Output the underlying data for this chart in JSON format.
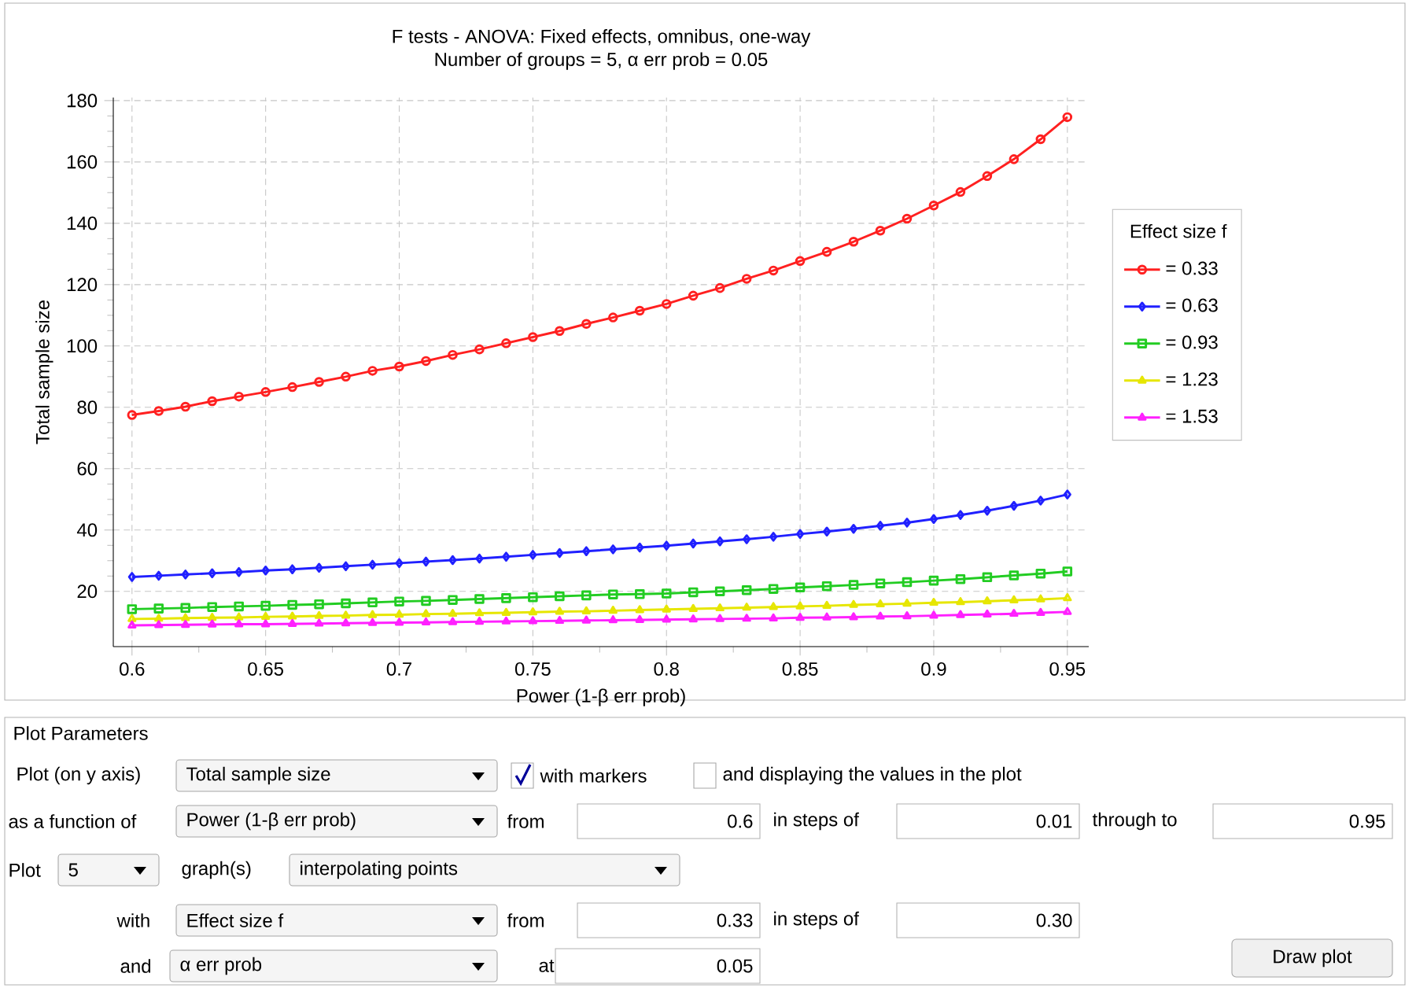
{
  "chart_data": {
    "type": "line",
    "title": "F tests - ANOVA: Fixed effects, omnibus, one-way",
    "subtitle": "Number of groups = 5, α err prob = 0.05",
    "xlabel": "Power (1-β err prob)",
    "ylabel": "Total sample size",
    "legend_title": "Effect size f",
    "x": [
      0.6,
      0.61,
      0.62,
      0.63,
      0.64,
      0.65,
      0.66,
      0.67,
      0.68,
      0.69,
      0.7,
      0.71,
      0.72,
      0.73,
      0.74,
      0.75,
      0.76,
      0.77,
      0.78,
      0.79,
      0.8,
      0.81,
      0.82,
      0.83,
      0.84,
      0.85,
      0.86,
      0.87,
      0.88,
      0.89,
      0.9,
      0.91,
      0.92,
      0.93,
      0.94,
      0.95
    ],
    "series": [
      {
        "name": "= 0.33",
        "color": "#ff2020",
        "marker": "circle",
        "values": [
          77.5,
          78.8,
          80.2,
          82.0,
          83.5,
          85.0,
          86.6,
          88.3,
          90.0,
          91.9,
          93.3,
          95.1,
          97.1,
          98.9,
          100.9,
          102.9,
          104.9,
          107.2,
          109.3,
          111.5,
          113.7,
          116.4,
          118.9,
          121.9,
          124.6,
          127.7,
          130.7,
          134.0,
          137.6,
          141.5,
          145.8,
          150.2,
          155.4,
          160.9,
          167.4,
          174.6
        ]
      },
      {
        "name": "= 0.63",
        "color": "#2020ff",
        "marker": "diamond",
        "values": [
          24.7,
          25.1,
          25.5,
          25.9,
          26.3,
          26.8,
          27.2,
          27.7,
          28.2,
          28.7,
          29.2,
          29.7,
          30.2,
          30.7,
          31.3,
          31.9,
          32.5,
          33.1,
          33.7,
          34.3,
          34.9,
          35.6,
          36.3,
          37.0,
          37.8,
          38.7,
          39.5,
          40.4,
          41.4,
          42.4,
          43.6,
          44.9,
          46.3,
          47.9,
          49.6,
          51.6
        ]
      },
      {
        "name": "= 0.93",
        "color": "#22cc22",
        "marker": "square",
        "values": [
          14.2,
          14.4,
          14.6,
          14.9,
          15.1,
          15.3,
          15.6,
          15.8,
          16.1,
          16.4,
          16.7,
          16.9,
          17.2,
          17.5,
          17.8,
          18.1,
          18.4,
          18.7,
          19.0,
          19.1,
          19.3,
          19.7,
          20.0,
          20.4,
          20.8,
          21.3,
          21.7,
          22.1,
          22.6,
          23.0,
          23.5,
          24.0,
          24.6,
          25.2,
          25.8,
          26.5
        ]
      },
      {
        "name": "= 1.23",
        "color": "#e6e600",
        "marker": "triangle",
        "values": [
          11.0,
          11.1,
          11.3,
          11.4,
          11.5,
          11.7,
          11.8,
          12.0,
          12.1,
          12.3,
          12.4,
          12.6,
          12.7,
          12.9,
          13.0,
          13.2,
          13.4,
          13.5,
          13.7,
          13.9,
          14.1,
          14.3,
          14.5,
          14.7,
          14.9,
          15.1,
          15.3,
          15.6,
          15.8,
          16.0,
          16.3,
          16.5,
          16.8,
          17.1,
          17.4,
          17.8
        ]
      },
      {
        "name": "= 1.53",
        "color": "#ff20ff",
        "marker": "triangle",
        "values": [
          8.9,
          9.0,
          9.1,
          9.2,
          9.3,
          9.3,
          9.4,
          9.5,
          9.6,
          9.7,
          9.8,
          9.9,
          10.0,
          10.1,
          10.2,
          10.3,
          10.4,
          10.5,
          10.6,
          10.7,
          10.8,
          10.9,
          11.0,
          11.1,
          11.2,
          11.4,
          11.5,
          11.6,
          11.8,
          11.9,
          12.1,
          12.3,
          12.5,
          12.7,
          13.0,
          13.3
        ]
      }
    ],
    "xlim": [
      0.593,
      0.958
    ],
    "ylim": [
      2,
      181
    ],
    "xticks": [
      0.6,
      0.65,
      0.7,
      0.75,
      0.8,
      0.85,
      0.9,
      0.95
    ],
    "yticks": [
      20,
      40,
      60,
      80,
      100,
      120,
      140,
      160,
      180
    ],
    "grid": true,
    "legend": "right",
    "line_style": "solid",
    "annotations": [
      "Plot Parameters",
      "Plot (on y axis)",
      "Total sample size",
      "with markers",
      "and displaying the values in the plot",
      "as a function of",
      "Power (1-β err prob)",
      "from",
      "0.6",
      "in steps of",
      "0.01",
      "through to",
      "0.95",
      "Plot",
      "5",
      "graph(s)",
      "interpolating points",
      "with",
      "Effect size f",
      "from",
      "0.33",
      "in steps of",
      "0.30",
      "and",
      "α err prob",
      "at",
      "0.05",
      "Draw plot"
    ]
  }
}
